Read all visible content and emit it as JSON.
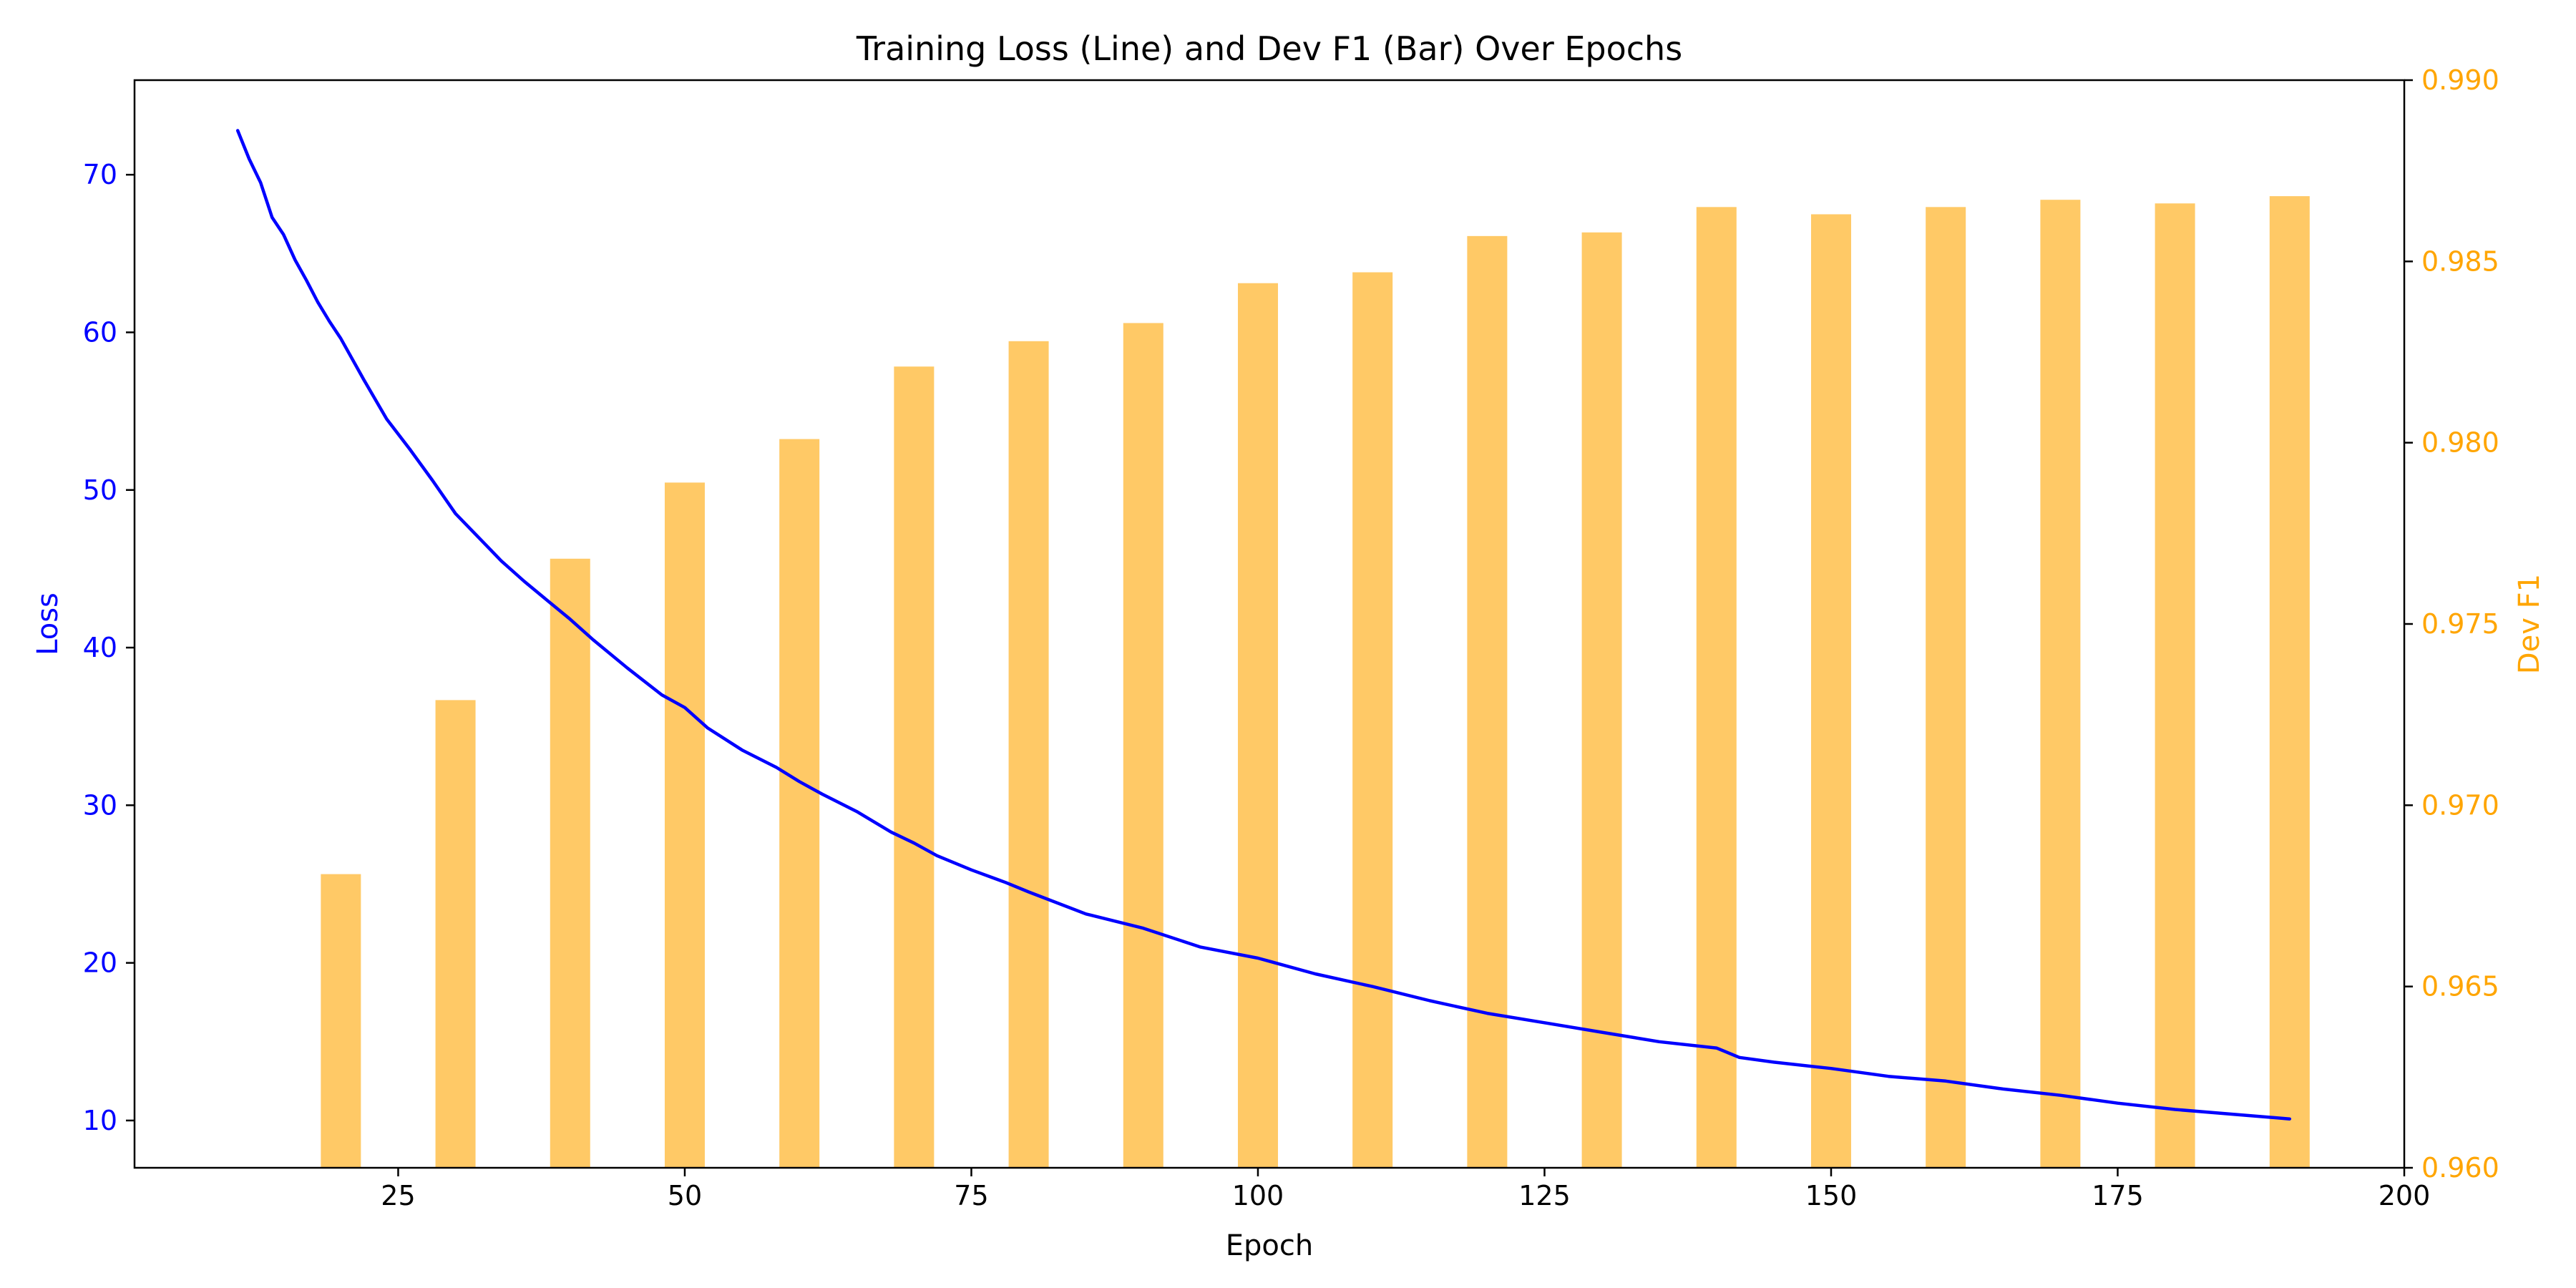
{
  "chart_data": {
    "type": "bar+line",
    "title": "Training Loss (Line) and Dev F1 (Bar) Over Epochs",
    "xlabel": "Epoch",
    "ylabel_left": "Loss",
    "ylabel_right": "Dev F1",
    "xlim": [
      2,
      200
    ],
    "ylim_left": [
      7,
      76
    ],
    "ylim_right": [
      0.96,
      0.99
    ],
    "x_ticks": [
      25,
      50,
      75,
      100,
      125,
      150,
      175,
      200
    ],
    "y_left_ticks": [
      10,
      20,
      30,
      40,
      50,
      60,
      70
    ],
    "y_right_ticks": [
      0.96,
      0.965,
      0.97,
      0.975,
      0.98,
      0.985,
      0.99
    ],
    "x_tick_labels": [
      "25",
      "50",
      "75",
      "100",
      "125",
      "150",
      "175",
      "200"
    ],
    "y_left_tick_labels": [
      "10",
      "20",
      "30",
      "40",
      "50",
      "60",
      "70"
    ],
    "y_right_tick_labels": [
      "0.960",
      "0.965",
      "0.970",
      "0.975",
      "0.980",
      "0.985",
      "0.990"
    ],
    "grid": false,
    "colors": {
      "loss": "#0000ff",
      "f1": "#ffa500",
      "axis": "#000000"
    },
    "bars": {
      "series_name": "Dev F1",
      "epochs": [
        20,
        30,
        40,
        50,
        60,
        70,
        80,
        90,
        100,
        110,
        120,
        130,
        140,
        150,
        160,
        170,
        180,
        190
      ],
      "values": [
        0.9681,
        0.9729,
        0.9768,
        0.9789,
        0.9801,
        0.9821,
        0.9828,
        0.9833,
        0.9844,
        0.9847,
        0.9857,
        0.9858,
        0.9865,
        0.9863,
        0.9865,
        0.9867,
        0.9866,
        0.9868
      ]
    },
    "line": {
      "series_name": "Loss",
      "epochs": [
        11,
        12,
        13,
        14,
        15,
        16,
        17,
        18,
        19,
        20,
        22,
        24,
        26,
        28,
        30,
        32,
        34,
        36,
        38,
        40,
        42,
        45,
        48,
        50,
        52,
        55,
        58,
        60,
        62,
        65,
        68,
        70,
        72,
        75,
        78,
        80,
        85,
        90,
        95,
        100,
        105,
        110,
        115,
        120,
        125,
        130,
        135,
        140,
        142,
        145,
        150,
        155,
        160,
        165,
        170,
        175,
        180,
        185,
        190
      ],
      "values": [
        72.8,
        71.0,
        69.5,
        67.3,
        66.2,
        64.6,
        63.3,
        61.9,
        60.7,
        59.6,
        57.0,
        54.5,
        52.6,
        50.6,
        48.5,
        47.0,
        45.5,
        44.2,
        43.0,
        41.8,
        40.5,
        38.7,
        37.0,
        36.2,
        34.9,
        33.5,
        32.4,
        31.5,
        30.7,
        29.6,
        28.3,
        27.6,
        26.8,
        25.9,
        25.1,
        24.5,
        23.1,
        22.2,
        21.0,
        20.3,
        19.3,
        18.5,
        17.6,
        16.8,
        16.2,
        15.6,
        15.0,
        14.6,
        14.0,
        13.7,
        13.3,
        12.8,
        12.5,
        12.0,
        11.6,
        11.1,
        10.7,
        10.4,
        10.1
      ]
    }
  }
}
